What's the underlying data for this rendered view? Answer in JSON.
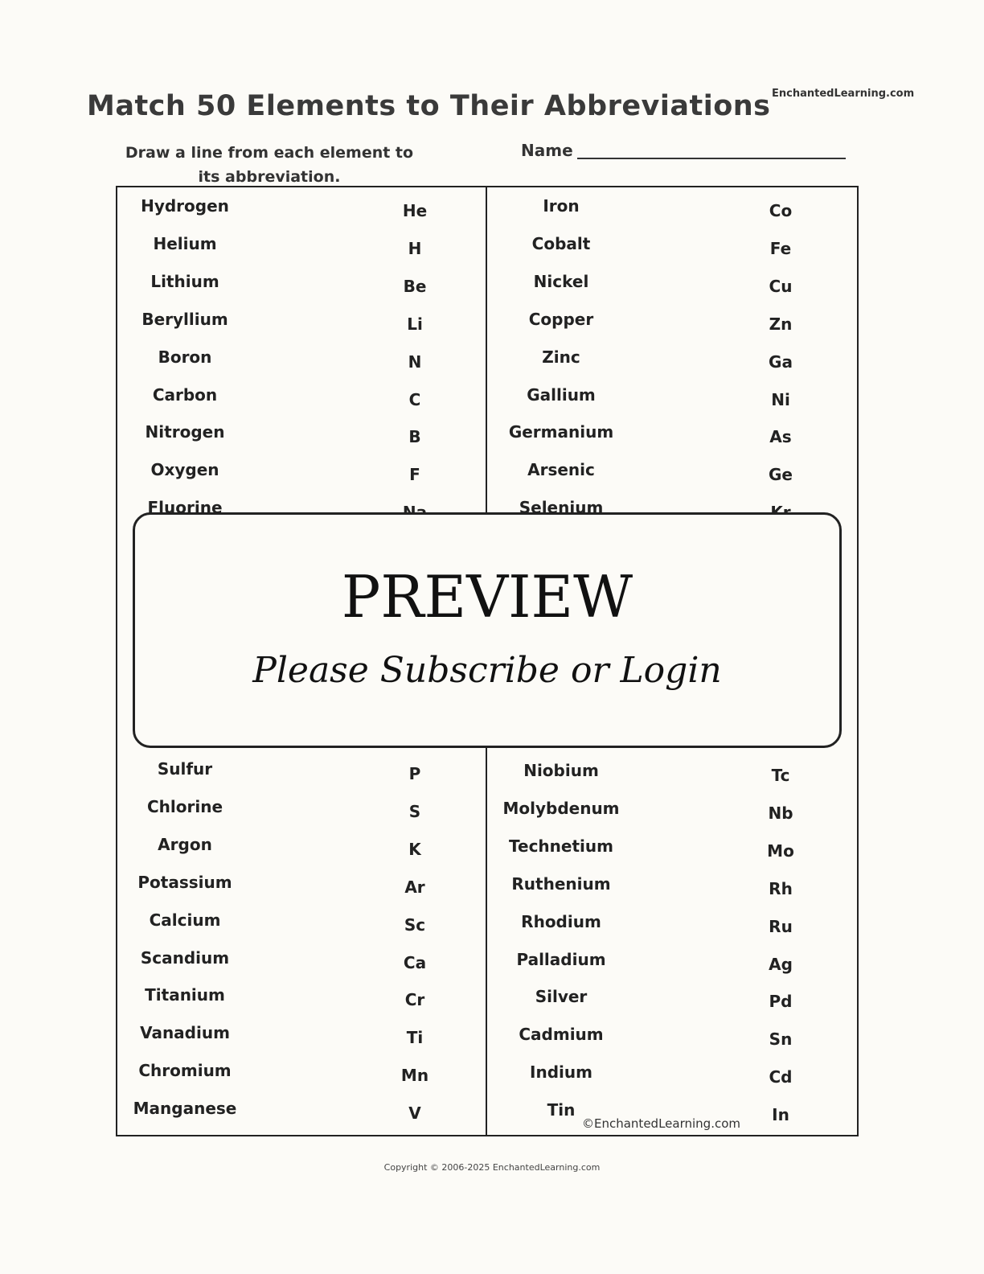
{
  "header": {
    "title": "Match 50 Elements to Their Abbreviations",
    "site": "EnchantedLearning.com",
    "instructions": "Draw a line from each element to its abbreviation.",
    "name_label": "Name"
  },
  "left_top": {
    "elements": [
      "Hydrogen",
      "Helium",
      "Lithium",
      "Beryllium",
      "Boron",
      "Carbon",
      "Nitrogen",
      "Oxygen",
      "Fluorine"
    ],
    "abbreviations": [
      "He",
      "H",
      "Be",
      "Li",
      "N",
      "C",
      "B",
      "F",
      "Na"
    ]
  },
  "right_top": {
    "elements": [
      "Iron",
      "Cobalt",
      "Nickel",
      "Copper",
      "Zinc",
      "Gallium",
      "Germanium",
      "Arsenic",
      "Selenium"
    ],
    "abbreviations": [
      "Co",
      "Fe",
      "Cu",
      "Zn",
      "Ga",
      "Ni",
      "As",
      "Ge",
      "Kr"
    ]
  },
  "left_bottom": {
    "elements": [
      "Sulfur",
      "Chlorine",
      "Argon",
      "Potassium",
      "Calcium",
      "Scandium",
      "Titanium",
      "Vanadium",
      "Chromium",
      "Manganese"
    ],
    "abbreviations": [
      "P",
      "S",
      "K",
      "Ar",
      "Sc",
      "Ca",
      "Cr",
      "Ti",
      "Mn",
      "V"
    ]
  },
  "right_bottom": {
    "elements": [
      "Niobium",
      "Molybdenum",
      "Technetium",
      "Ruthenium",
      "Rhodium",
      "Palladium",
      "Silver",
      "Cadmium",
      "Indium",
      "Tin"
    ],
    "abbreviations": [
      "Tc",
      "Nb",
      "Mo",
      "Rh",
      "Ru",
      "Ag",
      "Pd",
      "Sn",
      "Cd",
      "In"
    ]
  },
  "overlay": {
    "heading": "PREVIEW",
    "subtext": "Please Subscribe or Login"
  },
  "watermark": "©EnchantedLearning.com",
  "footer": "Copyright © 2006-2025 EnchantedLearning.com"
}
